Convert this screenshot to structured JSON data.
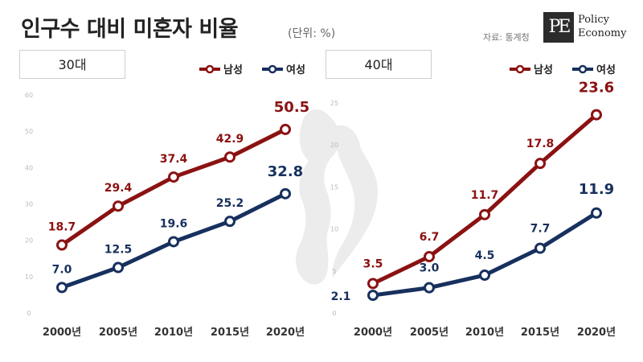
{
  "header": {
    "title": "인구수 대비 미혼자 비율",
    "unit": "(단위: %)",
    "source": "자료: 통계청",
    "logo_mark": "PE",
    "logo_line1": "Policy",
    "logo_line2": "Economy"
  },
  "colors": {
    "male": "#8b1212",
    "female": "#17305e",
    "watermark": "#ececec"
  },
  "chart_data": [
    {
      "type": "line",
      "title": "30대",
      "categories": [
        "2000년",
        "2005년",
        "2010년",
        "2015년",
        "2020년"
      ],
      "ylim": [
        0,
        60
      ],
      "yticks": [
        "0",
        "10",
        "20",
        "30",
        "40",
        "50",
        "60"
      ],
      "legend_position": "top-right",
      "grid": false,
      "series": [
        {
          "name": "남성",
          "values": [
            18.7,
            29.4,
            37.4,
            42.9,
            50.5
          ],
          "labels": [
            "18.7",
            "29.4",
            "37.4",
            "42.9",
            "50.5"
          ]
        },
        {
          "name": "여성",
          "values": [
            7.0,
            12.5,
            19.6,
            25.2,
            32.8
          ],
          "labels": [
            "7.0",
            "12.5",
            "19.6",
            "25.2",
            "32.8"
          ]
        }
      ]
    },
    {
      "type": "line",
      "title": "40대",
      "categories": [
        "2000년",
        "2005년",
        "2010년",
        "2015년",
        "2020년"
      ],
      "ylim": [
        0,
        25
      ],
      "yticks": [
        "0",
        "5",
        "10",
        "15",
        "20",
        "25"
      ],
      "legend_position": "top-right",
      "grid": false,
      "series": [
        {
          "name": "남성",
          "values": [
            3.5,
            6.7,
            11.7,
            17.8,
            23.6
          ],
          "labels": [
            "3.5",
            "6.7",
            "11.7",
            "17.8",
            "23.6"
          ]
        },
        {
          "name": "여성",
          "values": [
            2.1,
            3.0,
            4.5,
            7.7,
            11.9
          ],
          "labels": [
            "2.1",
            "3.0",
            "4.5",
            "7.7",
            "11.9"
          ]
        }
      ]
    }
  ]
}
